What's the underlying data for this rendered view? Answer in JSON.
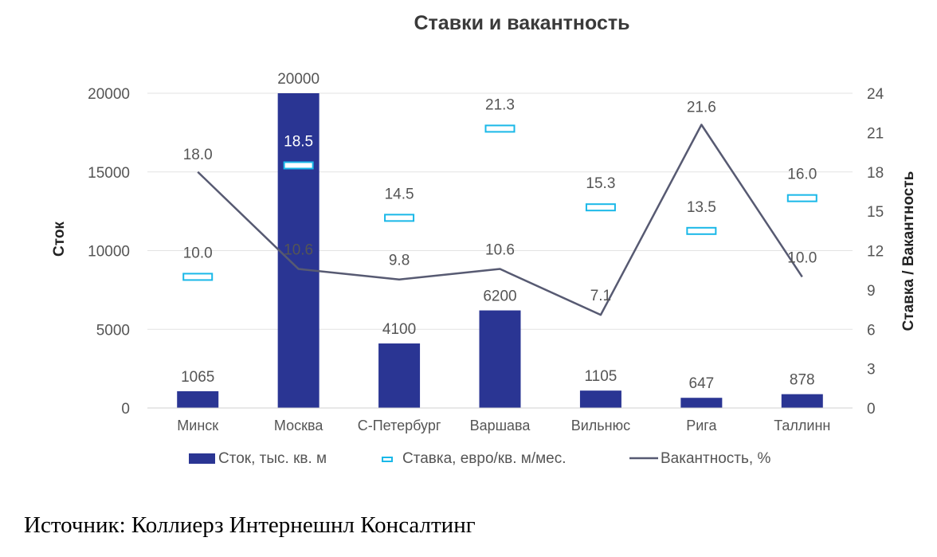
{
  "chart_data": {
    "type": "bar",
    "title": "Ставки и вакантность",
    "categories": [
      "Минск",
      "Москва",
      "С-Петербург",
      "Варшава",
      "Вильнюс",
      "Рига",
      "Таллинн"
    ],
    "ylabel": "Сток",
    "y2label": "Ставка / Вакантность",
    "ylim": [
      0,
      20000
    ],
    "y2lim": [
      0,
      24
    ],
    "yticks": [
      0,
      5000,
      10000,
      15000,
      20000
    ],
    "y2ticks": [
      0,
      3,
      6,
      9,
      12,
      15,
      18,
      21,
      24
    ],
    "grid": true,
    "legend_position": "bottom",
    "series": [
      {
        "name": "Сток, тыс. кв. м",
        "kind": "bar",
        "axis": "left",
        "color": "#2a3593",
        "values": [
          1065,
          20000,
          4100,
          6200,
          1105,
          647,
          878
        ],
        "labels": [
          "1065",
          "20000",
          "4100",
          "6200",
          "1105",
          "647",
          "878"
        ]
      },
      {
        "name": "Ставка, евро/кв. м/мес.",
        "kind": "marker",
        "axis": "right",
        "color": "#1ab8e8",
        "values": [
          10.0,
          18.5,
          14.5,
          21.3,
          15.3,
          13.5,
          16.0
        ],
        "labels": [
          "10.0",
          "18.5",
          "14.5",
          "21.3",
          "15.3",
          "13.5",
          "16.0"
        ]
      },
      {
        "name": "Вакантность, %",
        "kind": "line",
        "axis": "right",
        "color": "#575a72",
        "values": [
          18.0,
          10.6,
          9.8,
          10.6,
          7.1,
          21.6,
          10.0
        ],
        "labels": [
          "18.0",
          "10.6",
          "9.8",
          "10.6",
          "7.1",
          "21.6",
          "10.0"
        ]
      }
    ]
  },
  "source": {
    "label": "Источник:",
    "text": "Коллиерз Интернешнл Консалтинг"
  }
}
